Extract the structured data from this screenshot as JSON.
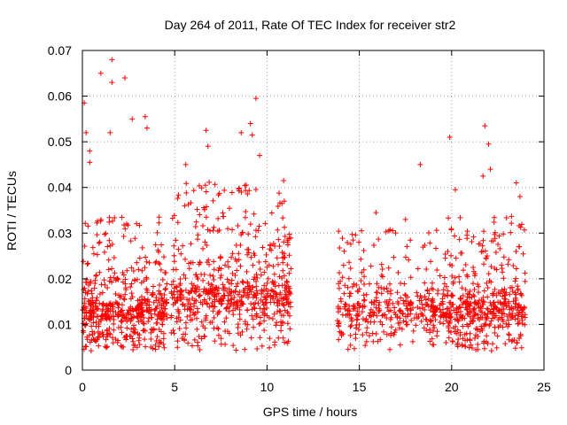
{
  "chart_data": {
    "type": "scatter",
    "title": "Day 264 of 2011, Rate Of TEC Index for receiver str2",
    "xlabel": "GPS time / hours",
    "ylabel": "ROTI / TECUs",
    "xlim": [
      0,
      25
    ],
    "ylim": [
      0,
      0.07
    ],
    "xticks": [
      0,
      5,
      10,
      15,
      20,
      25
    ],
    "xtick_labels": [
      "0",
      "5",
      "10",
      "15",
      "20",
      "25"
    ],
    "yticks": [
      0,
      0.01,
      0.02,
      0.03,
      0.04,
      0.05,
      0.06,
      0.07
    ],
    "ytick_labels": [
      "0",
      "0.01",
      "0.02",
      "0.03",
      "0.04",
      "0.05",
      "0.06",
      "0.07"
    ],
    "grid": true,
    "marker": "+",
    "color": "#ff0000",
    "series": [
      {
        "clusters": [
          {
            "x_range": [
              0.0,
              4.6
            ],
            "y_base": 0.013,
            "y_spread": 0.009,
            "count": 520
          },
          {
            "x_range": [
              4.8,
              11.3
            ],
            "y_base": 0.016,
            "y_spread": 0.011,
            "count": 640
          },
          {
            "x_range": [
              13.8,
              18.8
            ],
            "y_base": 0.013,
            "y_spread": 0.008,
            "count": 300
          },
          {
            "x_range": [
              18.8,
              24.0
            ],
            "y_base": 0.013,
            "y_spread": 0.009,
            "count": 520
          }
        ],
        "highlights": [
          {
            "x": 0.1,
            "y": 0.0585
          },
          {
            "x": 0.2,
            "y": 0.052
          },
          {
            "x": 0.4,
            "y": 0.048
          },
          {
            "x": 1.0,
            "y": 0.065
          },
          {
            "x": 1.6,
            "y": 0.068
          },
          {
            "x": 1.6,
            "y": 0.063
          },
          {
            "x": 2.3,
            "y": 0.064
          },
          {
            "x": 2.7,
            "y": 0.055
          },
          {
            "x": 3.4,
            "y": 0.0555
          },
          {
            "x": 3.5,
            "y": 0.053
          },
          {
            "x": 1.5,
            "y": 0.052
          },
          {
            "x": 0.4,
            "y": 0.0455
          },
          {
            "x": 5.6,
            "y": 0.045
          },
          {
            "x": 6.7,
            "y": 0.0525
          },
          {
            "x": 6.8,
            "y": 0.049
          },
          {
            "x": 8.6,
            "y": 0.052
          },
          {
            "x": 9.2,
            "y": 0.0515
          },
          {
            "x": 9.4,
            "y": 0.0595
          },
          {
            "x": 9.1,
            "y": 0.054
          },
          {
            "x": 9.6,
            "y": 0.047
          },
          {
            "x": 10.9,
            "y": 0.0415
          },
          {
            "x": 18.3,
            "y": 0.045
          },
          {
            "x": 19.9,
            "y": 0.051
          },
          {
            "x": 20.2,
            "y": 0.0395
          },
          {
            "x": 21.8,
            "y": 0.0535
          },
          {
            "x": 22.0,
            "y": 0.0495
          },
          {
            "x": 22.1,
            "y": 0.044
          },
          {
            "x": 21.7,
            "y": 0.0425
          },
          {
            "x": 23.7,
            "y": 0.038
          },
          {
            "x": 23.5,
            "y": 0.041
          },
          {
            "x": 15.9,
            "y": 0.0345
          },
          {
            "x": 16.6,
            "y": 0.0305
          },
          {
            "x": 17.5,
            "y": 0.033
          }
        ]
      }
    ]
  }
}
